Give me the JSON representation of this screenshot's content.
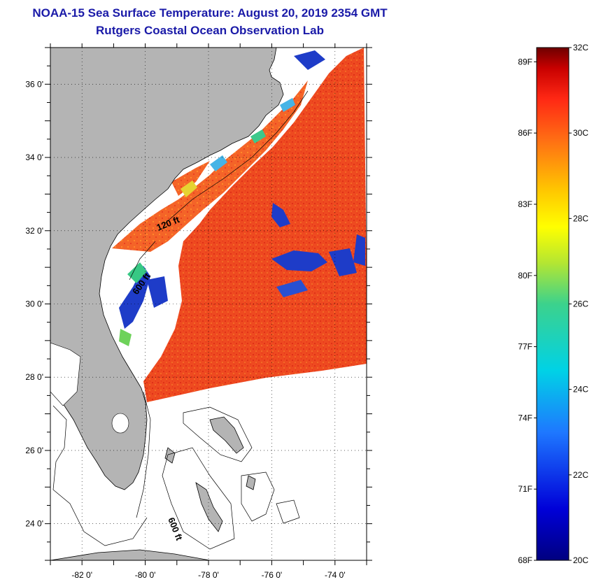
{
  "header": {
    "title": "NOAA-15 Sea Surface Temperature:  August 20, 2019 2354 GMT",
    "subtitle": "Rutgers Coastal Ocean Observation Lab"
  },
  "map": {
    "lon_range": [
      -83,
      -73
    ],
    "lat_range": [
      23,
      37
    ],
    "lat_labels": [
      "36 0'",
      "34 0'",
      "32 0'",
      "30 0'",
      "28 0'",
      "26 0'",
      "24 0'"
    ],
    "lon_labels": [
      "-82 0'",
      "-80 0'",
      "-78 0'",
      "-76 0'",
      "-74 0'"
    ],
    "contour_labels": [
      "120 ft",
      "600 ft",
      "600 ft"
    ],
    "colors": {
      "land": "#b4b4b4",
      "ocean_warm": "#f0501e",
      "ocean_hot": "#e8321e",
      "ocean_cool": "#1e3cc8",
      "background": "#ffffff"
    }
  },
  "colorbar": {
    "celsius_labels": [
      "32C",
      "30C",
      "28C",
      "26C",
      "24C",
      "22C",
      "20C"
    ],
    "fahrenheit_labels": [
      "89F",
      "86F",
      "83F",
      "80F",
      "77F",
      "74F",
      "71F",
      "68F"
    ],
    "range_c": [
      20,
      32
    ]
  }
}
